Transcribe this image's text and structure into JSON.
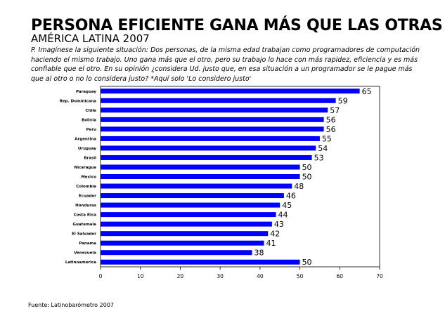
{
  "title": "PERSONA EFICIENTE GANA MÁS QUE LAS OTRAS",
  "subtitle": "AMÉRICA LATINA 2007",
  "question": "P. Imagínese la siguiente situación: Dos personas, de la misma edad trabajan como programadores de computación haciendo el mismo trabajo. Uno gana más que el otro, pero su trabajo lo hace con más rapidez, eficiencia y es más confiable que el otro. En su opinión ¿considera Ud. justo que, en esa situación a un programador se le pague más que al otro o no lo considera justo? *Aquí solo 'Lo considero justo'",
  "source": "Fuente: Latinobarómetro 2007",
  "chart_data": {
    "type": "bar",
    "orientation": "horizontal",
    "categories": [
      "Paraguay",
      "Rep. Dominicana",
      "Chile",
      "Bolivia",
      "Peru",
      "Argentina",
      "Uruguay",
      "Brasil",
      "Nicaragua",
      "Mexico",
      "Colombia",
      "Ecuador",
      "Honduras",
      "Costa Rica",
      "Guatemala",
      "El Salvador",
      "Panama",
      "Venezuela",
      "Latinoamerica"
    ],
    "values": [
      65,
      59,
      57,
      56,
      56,
      55,
      54,
      53,
      50,
      50,
      48,
      46,
      45,
      44,
      43,
      42,
      41,
      38,
      50
    ],
    "xlim": [
      0,
      70
    ],
    "xticks": [
      0,
      10,
      20,
      30,
      40,
      50,
      60,
      70
    ],
    "bar_color": "#0000ff",
    "grid": false,
    "legend": "none"
  }
}
